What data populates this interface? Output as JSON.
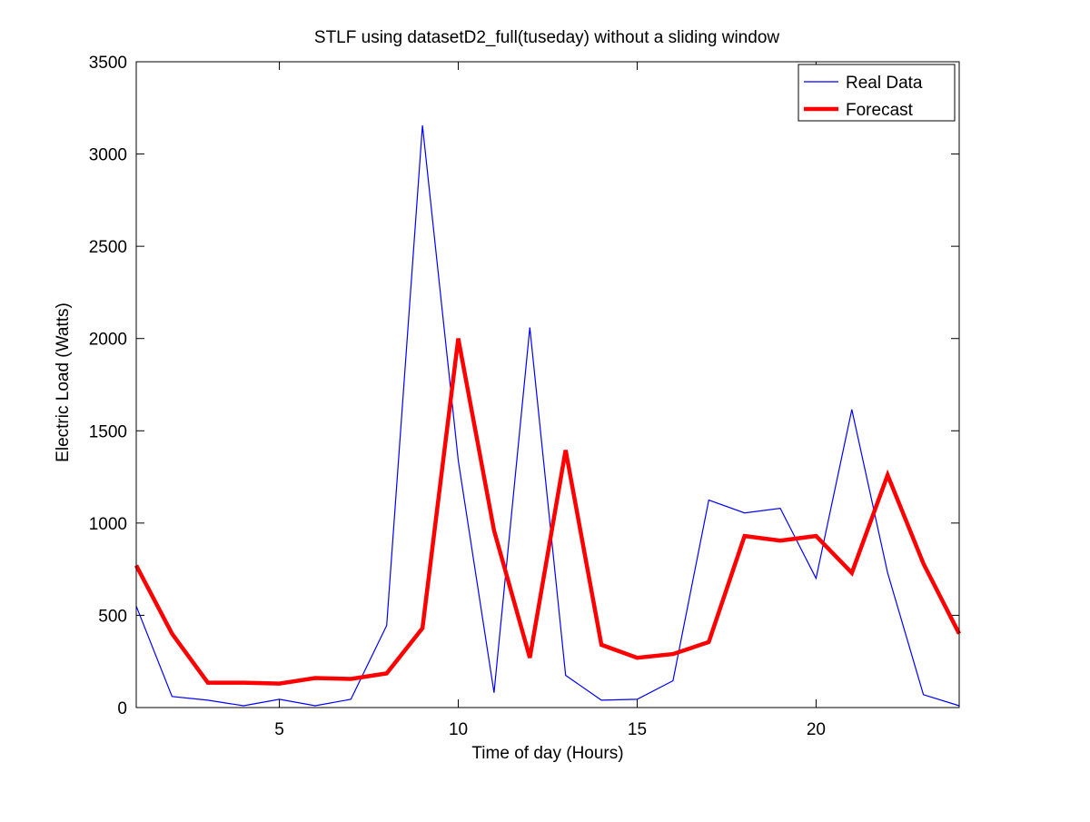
{
  "chart_data": {
    "type": "line",
    "title": "STLF using datasetD2_full(tuseday) without a sliding window",
    "xlabel": "Time of day (Hours)",
    "ylabel": "Electric Load (Watts)",
    "xlim": [
      1,
      24
    ],
    "ylim": [
      0,
      3500
    ],
    "xticks": [
      5,
      10,
      15,
      20
    ],
    "yticks": [
      0,
      500,
      1000,
      1500,
      2000,
      2500,
      3000,
      3500
    ],
    "grid": false,
    "legend_position": "top-right",
    "x": [
      1,
      2,
      3,
      4,
      5,
      6,
      7,
      8,
      9,
      10,
      11,
      12,
      13,
      14,
      15,
      16,
      17,
      18,
      19,
      20,
      21,
      22,
      23,
      24
    ],
    "series": [
      {
        "name": "Real Data",
        "color": "#0000ff",
        "style": "thin",
        "values": [
          550,
          60,
          40,
          10,
          45,
          10,
          45,
          445,
          3155,
          1340,
          80,
          2060,
          175,
          40,
          45,
          145,
          1125,
          1055,
          1080,
          700,
          1615,
          730,
          70,
          10
        ]
      },
      {
        "name": "Forecast",
        "color": "#ff0000",
        "style": "thick",
        "values": [
          770,
          400,
          135,
          135,
          130,
          160,
          155,
          185,
          430,
          2000,
          960,
          270,
          1395,
          340,
          270,
          290,
          355,
          930,
          905,
          930,
          730,
          1260,
          780,
          400
        ]
      }
    ]
  }
}
